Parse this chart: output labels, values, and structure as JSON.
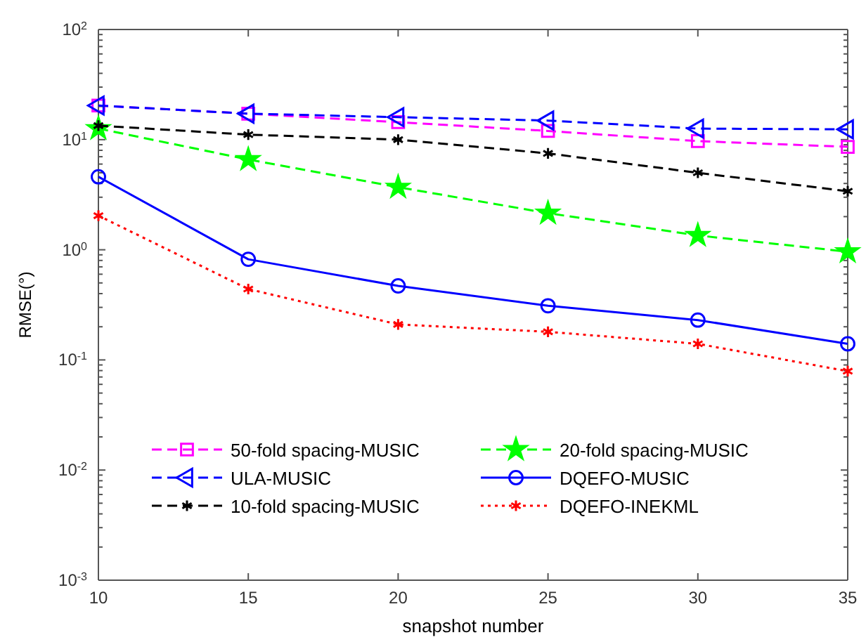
{
  "chart_data": {
    "type": "line",
    "xlabel": "snapshot number",
    "ylabel": "RMSE(°)",
    "x": [
      10,
      15,
      20,
      25,
      30,
      35
    ],
    "xlim": [
      10,
      35
    ],
    "xticks": [
      10,
      15,
      20,
      25,
      30,
      35
    ],
    "ylim": [
      0.001,
      100
    ],
    "log": "y",
    "grid": false,
    "legend": "bottom",
    "yticks": [
      {
        "value": 0.001,
        "label": "10$^{-3}$"
      },
      {
        "value": 0.01,
        "label": "10$^{-2}$"
      },
      {
        "value": 0.1,
        "label": "10$^{-1}$"
      },
      {
        "value": 1,
        "label": "10$^{0}$"
      },
      {
        "value": 10,
        "label": "10$^{1}$"
      },
      {
        "value": 100,
        "label": "10$^{2}$"
      }
    ],
    "series": [
      {
        "name": "50-fold spacing-MUSIC",
        "color": "#ff00ff",
        "marker": "square",
        "line_style": "dashed",
        "values": [
          20.4,
          17.2,
          14.4,
          12.0,
          9.7,
          8.6
        ]
      },
      {
        "name": "20-fold spacing-MUSIC",
        "color": "#00ff00",
        "marker": "star",
        "line_style": "dashed",
        "values": [
          12.6,
          6.6,
          3.7,
          2.15,
          1.35,
          0.96
        ]
      },
      {
        "name": "ULA-MUSIC",
        "color": "#0000ff",
        "marker": "triangle",
        "line_style": "dashed",
        "values": [
          20.4,
          17.2,
          16.0,
          14.9,
          12.6,
          12.4
        ]
      },
      {
        "name": "DQEFO-MUSIC",
        "color": "#0000ff",
        "marker": "circle",
        "line_style": "solid",
        "values": [
          4.6,
          0.82,
          0.47,
          0.31,
          0.23,
          0.14
        ]
      },
      {
        "name": "10-fold spacing-MUSIC",
        "color": "#000000",
        "marker": "cross",
        "line_style": "dashed",
        "values": [
          13.4,
          11.1,
          10.0,
          7.5,
          5.0,
          3.4
        ]
      },
      {
        "name": "DQEFO-INEKML",
        "color": "#ff0000",
        "marker": "cross",
        "line_style": "dotted",
        "values": [
          2.04,
          0.44,
          0.21,
          0.18,
          0.14,
          0.079
        ]
      }
    ]
  }
}
